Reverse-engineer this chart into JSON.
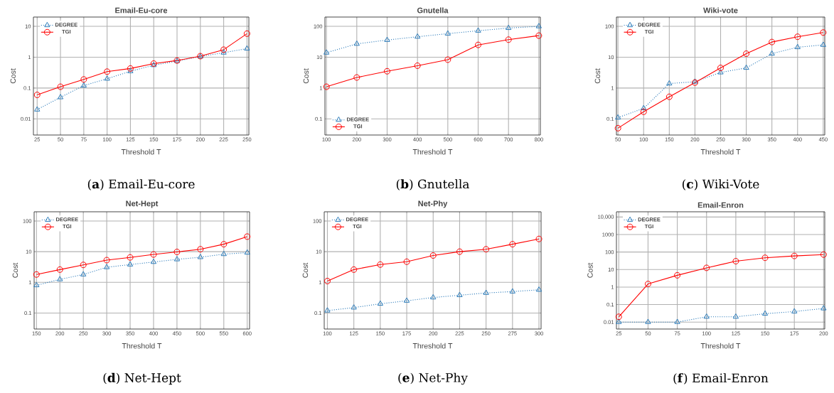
{
  "chart_data": [
    {
      "type": "line",
      "title": "Email-Eu-core",
      "xlabel": "Threshold T",
      "ylabel": "Cost",
      "x": [
        25,
        50,
        75,
        100,
        125,
        150,
        175,
        200,
        225,
        250
      ],
      "xlim": [
        21,
        252
      ],
      "xticks": [
        25,
        50,
        75,
        100,
        125,
        150,
        175,
        200,
        225,
        250
      ],
      "ylim": [
        0.003,
        20
      ],
      "yticks": [
        0.01,
        0.1,
        1,
        10
      ],
      "log": true,
      "grid": true,
      "legend": "top left",
      "series": [
        {
          "name": "DEGREE",
          "color": "#2b7bba",
          "marker": "triangle",
          "line_style": "dotted",
          "values": [
            0.02,
            0.05,
            0.12,
            0.2,
            0.35,
            0.55,
            0.75,
            1.05,
            1.4,
            1.9
          ]
        },
        {
          "name": "TGI",
          "color": "#ff0000",
          "marker": "circle",
          "line_style": "solid",
          "values": [
            0.06,
            0.11,
            0.19,
            0.34,
            0.43,
            0.62,
            0.78,
            1.08,
            1.75,
            5.8
          ]
        }
      ],
      "annotations": [
        "(**a**) Email-Eu-core"
      ]
    },
    {
      "type": "line",
      "title": "Gnutella",
      "xlabel": "Threshold T",
      "ylabel": "Cost",
      "x": [
        100,
        200,
        300,
        400,
        500,
        600,
        700,
        800
      ],
      "xlim": [
        95,
        805
      ],
      "xticks": [
        100,
        200,
        300,
        400,
        500,
        600,
        700,
        800
      ],
      "ylim": [
        0.03,
        200
      ],
      "yticks": [
        0.1,
        1,
        10,
        100
      ],
      "log": true,
      "grid": true,
      "legend": "bottom left",
      "series": [
        {
          "name": "DEGREE",
          "color": "#2b7bba",
          "marker": "triangle",
          "line_style": "dotted",
          "values": [
            14,
            27,
            36,
            46,
            58,
            72,
            88,
            100
          ]
        },
        {
          "name": "TGI",
          "color": "#ff0000",
          "marker": "circle",
          "line_style": "solid",
          "values": [
            1.1,
            2.2,
            3.5,
            5.3,
            8.3,
            25,
            37,
            50
          ]
        }
      ],
      "annotations": [
        "(**b**) Gnutella"
      ]
    },
    {
      "type": "line",
      "title": "Wiki-vote",
      "xlabel": "Threshold T",
      "ylabel": "Cost",
      "x": [
        50,
        100,
        150,
        200,
        250,
        300,
        350,
        400,
        450
      ],
      "xlim": [
        47,
        453
      ],
      "xticks": [
        50,
        100,
        150,
        200,
        250,
        300,
        350,
        400,
        450
      ],
      "ylim": [
        0.03,
        200
      ],
      "yticks": [
        0.1,
        1,
        10,
        100
      ],
      "log": true,
      "grid": true,
      "legend": "top left",
      "series": [
        {
          "name": "DEGREE",
          "color": "#2b7bba",
          "marker": "triangle",
          "line_style": "dotted",
          "values": [
            0.11,
            0.22,
            1.4,
            1.6,
            3.2,
            4.5,
            13,
            21,
            25
          ]
        },
        {
          "name": "TGI",
          "color": "#ff0000",
          "marker": "circle",
          "line_style": "solid",
          "values": [
            0.05,
            0.17,
            0.52,
            1.5,
            4.5,
            13,
            31,
            46,
            63
          ]
        }
      ],
      "annotations": [
        "(**c**) Wiki-Vote"
      ]
    },
    {
      "type": "line",
      "title": "Net-Hept",
      "xlabel": "Threshold T",
      "ylabel": "Cost",
      "x": [
        150,
        200,
        250,
        300,
        350,
        400,
        450,
        500,
        550,
        600
      ],
      "xlim": [
        145,
        605
      ],
      "xticks": [
        150,
        200,
        250,
        300,
        350,
        400,
        450,
        500,
        550,
        600
      ],
      "ylim": [
        0.03,
        200
      ],
      "yticks": [
        0.1,
        1,
        10,
        100
      ],
      "log": true,
      "grid": true,
      "legend": "top left",
      "series": [
        {
          "name": "DEGREE",
          "color": "#2b7bba",
          "marker": "triangle",
          "line_style": "dotted",
          "values": [
            0.8,
            1.25,
            1.8,
            3.1,
            3.8,
            4.6,
            5.6,
            6.6,
            8.3,
            9.3
          ]
        },
        {
          "name": "TGI",
          "color": "#ff0000",
          "marker": "circle",
          "line_style": "solid",
          "values": [
            1.8,
            2.6,
            3.7,
            5.3,
            6.5,
            8.1,
            9.8,
            12,
            17.5,
            31
          ]
        }
      ],
      "annotations": [
        "(**d**) Net-Hept"
      ]
    },
    {
      "type": "line",
      "title": "Net-Phy",
      "xlabel": "Threshold T",
      "ylabel": "Cost",
      "x": [
        100,
        125,
        150,
        175,
        200,
        225,
        250,
        275,
        300
      ],
      "xlim": [
        97,
        302
      ],
      "xticks": [
        100,
        125,
        150,
        175,
        200,
        225,
        250,
        275,
        300
      ],
      "ylim": [
        0.03,
        200
      ],
      "yticks": [
        0.1,
        1,
        10,
        100
      ],
      "log": true,
      "grid": true,
      "legend": "top left",
      "series": [
        {
          "name": "DEGREE",
          "color": "#2b7bba",
          "marker": "triangle",
          "line_style": "dotted",
          "values": [
            0.12,
            0.15,
            0.2,
            0.25,
            0.32,
            0.38,
            0.45,
            0.5,
            0.57
          ]
        },
        {
          "name": "TGI",
          "color": "#ff0000",
          "marker": "circle",
          "line_style": "solid",
          "values": [
            1.1,
            2.6,
            3.8,
            4.7,
            7.5,
            10,
            12,
            17.5,
            26
          ]
        }
      ],
      "annotations": [
        "(**e**) Net-Phy"
      ]
    },
    {
      "type": "line",
      "title": "Email-Enron",
      "xlabel": "Threshold T",
      "ylabel": "Cost",
      "x": [
        25,
        50,
        75,
        100,
        125,
        150,
        175,
        200
      ],
      "xlim": [
        23,
        201
      ],
      "xticks": [
        25,
        50,
        75,
        100,
        125,
        150,
        175,
        200
      ],
      "ylim": [
        0.004,
        20000
      ],
      "yticks": [
        0.01,
        0.1,
        1,
        10,
        100,
        1000,
        {
          "value": 10000,
          "label": "10,000"
        }
      ],
      "log": true,
      "grid": true,
      "legend": "top left",
      "series": [
        {
          "name": "DEGREE",
          "color": "#2b7bba",
          "marker": "triangle",
          "line_style": "dotted",
          "values": [
            0.01,
            0.01,
            0.01,
            0.02,
            0.02,
            0.03,
            0.04,
            0.06
          ]
        },
        {
          "name": "TGI",
          "color": "#ff0000",
          "marker": "circle",
          "line_style": "solid",
          "values": [
            0.02,
            1.5,
            4.7,
            12.5,
            30,
            47,
            60,
            72
          ]
        }
      ],
      "annotations": [
        "(**f**) Email-Enron"
      ]
    }
  ]
}
